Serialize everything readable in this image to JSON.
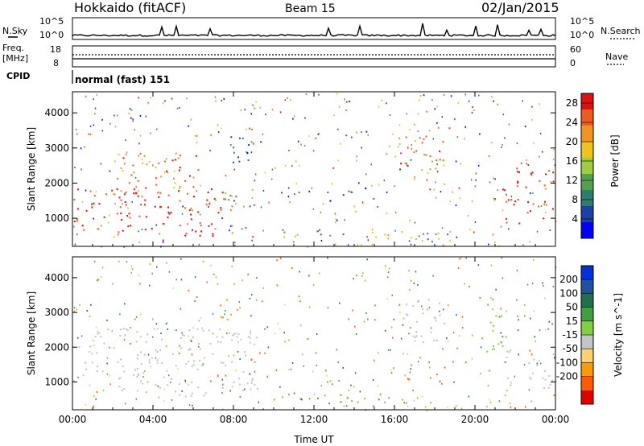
{
  "header": {
    "radar": "Hokkaido (fitACF)",
    "beam": "Beam 15",
    "date": "02/Jan/2015"
  },
  "side_labels": {
    "nsky": "N.Sky",
    "freq": "Freq.",
    "freq_unit": "[MHz]",
    "cpid": "CPID",
    "nsearch": "N.Search",
    "nave": "Nave",
    "cpid_text": "normal (fast) 151"
  },
  "top_panels": {
    "noise_ticks_left": [
      "10^5",
      "10^0"
    ],
    "noise_ticks_right": [
      "10^5",
      "10^0"
    ],
    "freq_ticks_left": [
      "18",
      "8"
    ],
    "nave_ticks_right": [
      "60",
      "0"
    ]
  },
  "colors": {
    "power_scale": [
      "#0000ff",
      "#1d3fa8",
      "#2e7d6f",
      "#55a14b",
      "#9fcc3a",
      "#f2c21a",
      "#f39420",
      "#ef5a1f",
      "#e01010"
    ],
    "velocity_scale": [
      "#e00000",
      "#ff5a00",
      "#ff9a00",
      "#ffd070",
      "#c4c4c4",
      "#80d040",
      "#40a040",
      "#207050",
      "#2050a0",
      "#0030e0"
    ],
    "ground_scatter": "#c0c0bc"
  },
  "chart_data": [
    {
      "type": "heatmap",
      "name": "power",
      "xlabel": "",
      "ylabel": "Slant Range [km]",
      "x_ticks": [
        "00:00",
        "04:00",
        "08:00",
        "12:00",
        "16:00",
        "20:00",
        "00:00"
      ],
      "y_ticks": [
        "1000",
        "2000",
        "3000",
        "4000"
      ],
      "xlim": [
        0,
        24
      ],
      "ylim": [
        200,
        4600
      ],
      "colorbar": {
        "label": "Power [dB]",
        "ticks": [
          "4",
          "8",
          "12",
          "16",
          "20",
          "24",
          "28"
        ],
        "range": [
          0,
          30
        ]
      },
      "regions": [
        {
          "t": [
            0.0,
            7.5
          ],
          "r": [
            500,
            1900
          ],
          "value": 28
        },
        {
          "t": [
            2.0,
            6.5
          ],
          "r": [
            1700,
            3000
          ],
          "value": 24
        },
        {
          "t": [
            7.5,
            9.0
          ],
          "r": [
            1200,
            2000
          ],
          "value": 12
        },
        {
          "t": [
            7.8,
            9.2
          ],
          "r": [
            2400,
            3600
          ],
          "value": 8
        },
        {
          "t": [
            9.8,
            19.0
          ],
          "r": [
            420,
            650
          ],
          "value": 14
        },
        {
          "t": [
            12.5,
            15.0
          ],
          "r": [
            1500,
            1900
          ],
          "value": 6
        },
        {
          "t": [
            13.5,
            14.8
          ],
          "r": [
            3300,
            3700
          ],
          "value": 10
        },
        {
          "t": [
            16.0,
            18.6
          ],
          "r": [
            2100,
            3400
          ],
          "value": 24
        },
        {
          "t": [
            21.3,
            24.0
          ],
          "r": [
            800,
            2500
          ],
          "value": 28
        }
      ]
    },
    {
      "type": "heatmap",
      "name": "velocity",
      "xlabel": "Time UT",
      "ylabel": "Slant Range [km]",
      "x_ticks": [
        "00:00",
        "04:00",
        "08:00",
        "12:00",
        "16:00",
        "20:00",
        "00:00"
      ],
      "y_ticks": [
        "1000",
        "2000",
        "3000",
        "4000"
      ],
      "xlim": [
        0,
        24
      ],
      "ylim": [
        200,
        4600
      ],
      "colorbar": {
        "label": "Velocity [m s^-1]",
        "ticks": [
          "200",
          "100",
          "50",
          "15",
          "-15",
          "-50",
          "-100",
          "-200"
        ]
      },
      "regions": [
        {
          "t": [
            0.0,
            9.2
          ],
          "r": [
            600,
            2600
          ],
          "value": 0
        },
        {
          "t": [
            9.8,
            19.0
          ],
          "r": [
            420,
            650
          ],
          "value": 40
        },
        {
          "t": [
            16.2,
            18.5
          ],
          "r": [
            2100,
            3400
          ],
          "value": 0
        },
        {
          "t": [
            20.3,
            21.6
          ],
          "r": [
            1600,
            3000
          ],
          "value": 40
        },
        {
          "t": [
            21.5,
            24.0
          ],
          "r": [
            800,
            2000
          ],
          "value": 0
        },
        {
          "t": [
            7.2,
            8.0
          ],
          "r": [
            2700,
            3400
          ],
          "value": -40
        }
      ]
    }
  ]
}
